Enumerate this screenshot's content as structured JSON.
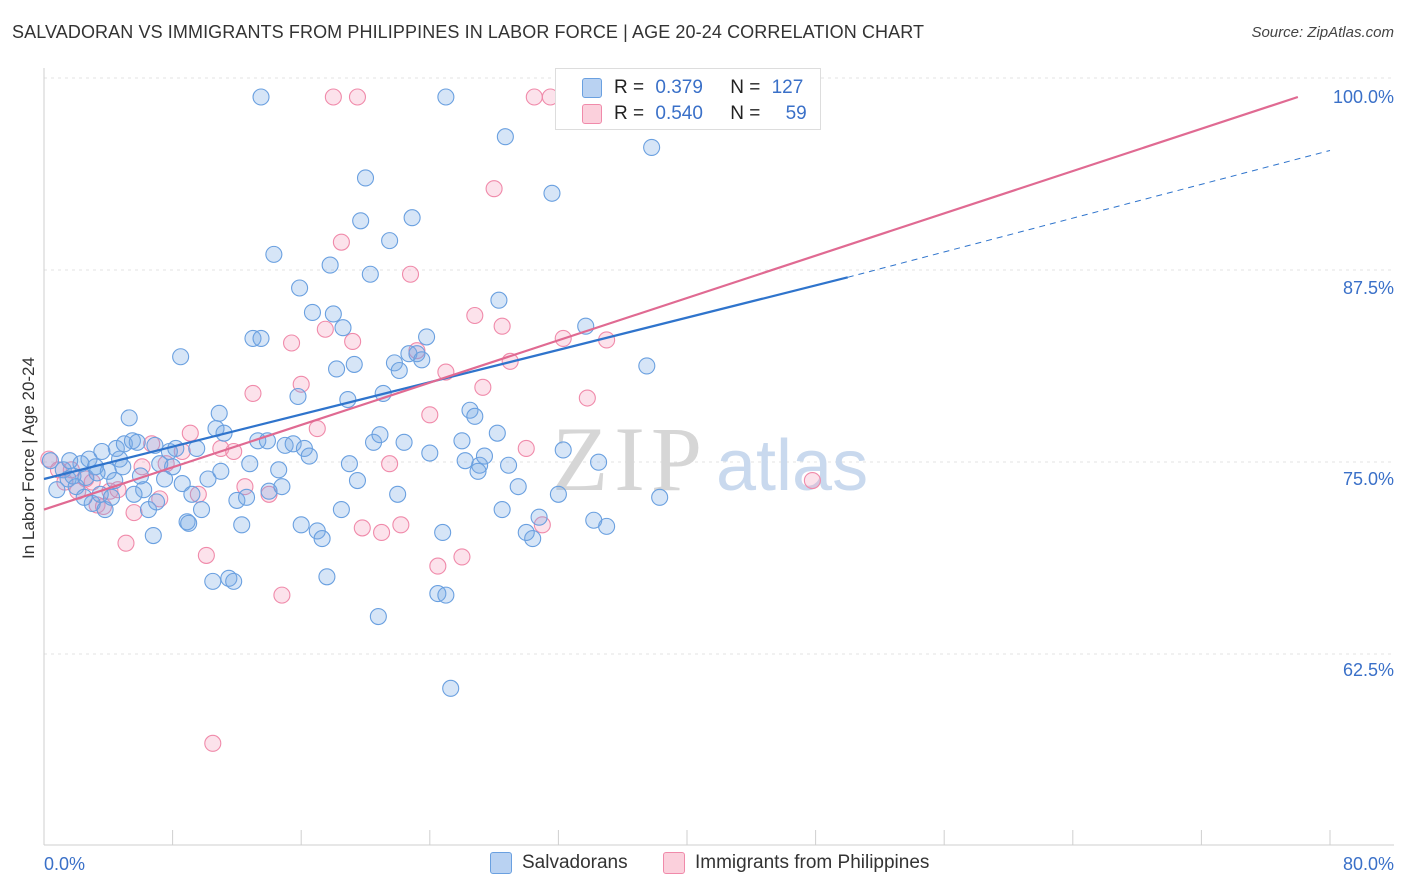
{
  "title": "SALVADORAN VS IMMIGRANTS FROM PHILIPPINES IN LABOR FORCE | AGE 20-24 CORRELATION CHART",
  "source": "Source: ZipAtlas.com",
  "watermark": {
    "zip": "ZIP",
    "atlas": "atlas"
  },
  "colors": {
    "blue": "#6aa0e0",
    "blue_line": "#2f74cc",
    "pink": "#f08aaa",
    "pink_line": "#e06a92",
    "axis_label": "#3a70c8"
  },
  "legend": {
    "r_label": "R =",
    "n_label": "N =",
    "rows": [
      {
        "r": "0.379",
        "n": "127"
      },
      {
        "r": "0.540",
        "n": "59"
      }
    ]
  },
  "series_labels": [
    "Salvadorans",
    "Immigrants from Philippines"
  ],
  "chart_data": {
    "type": "scatter",
    "title": "SALVADORAN VS IMMIGRANTS FROM PHILIPPINES IN LABOR FORCE | AGE 20-24 CORRELATION CHART",
    "xlabel": "",
    "ylabel": "In Labor Force | Age 20-24",
    "xlim": [
      0,
      80
    ],
    "ylim": [
      50,
      101
    ],
    "x_tick_labels": [
      "0.0%",
      "80.0%"
    ],
    "y_ticks": [
      62.5,
      75.0,
      87.5,
      100.0
    ],
    "y_tick_labels": [
      "62.5%",
      "75.0%",
      "87.5%",
      "100.0%"
    ],
    "series": [
      {
        "name": "Salvadorans",
        "r": 0.379,
        "n": 127,
        "trend": {
          "x0": 0,
          "y0": 75.0,
          "x1": 50,
          "y1": 88.2,
          "dash_x1": 80,
          "dash_y1": 96.5
        },
        "points": [
          [
            0.4,
            76.2
          ],
          [
            0.8,
            74.3
          ],
          [
            1.2,
            75.6
          ],
          [
            1.5,
            75.0
          ],
          [
            1.8,
            75.2
          ],
          [
            2.0,
            74.5
          ],
          [
            2.3,
            76.0
          ],
          [
            2.6,
            75.1
          ],
          [
            2.8,
            76.3
          ],
          [
            3.0,
            73.4
          ],
          [
            3.2,
            75.8
          ],
          [
            3.5,
            74.0
          ],
          [
            3.8,
            73.0
          ],
          [
            4.0,
            75.5
          ],
          [
            4.2,
            73.8
          ],
          [
            4.5,
            77.0
          ],
          [
            4.7,
            76.3
          ],
          [
            5.0,
            77.3
          ],
          [
            5.3,
            79.0
          ],
          [
            5.5,
            77.5
          ],
          [
            5.8,
            77.4
          ],
          [
            6.2,
            74.3
          ],
          [
            6.5,
            73.0
          ],
          [
            6.8,
            71.3
          ],
          [
            6.9,
            77.2
          ],
          [
            7.2,
            76.0
          ],
          [
            7.5,
            75.0
          ],
          [
            7.8,
            76.8
          ],
          [
            8.2,
            77.0
          ],
          [
            8.5,
            83.0
          ],
          [
            8.6,
            74.7
          ],
          [
            8.9,
            72.2
          ],
          [
            9.0,
            72.1
          ],
          [
            9.5,
            77.0
          ],
          [
            9.8,
            73.0
          ],
          [
            10.2,
            75.0
          ],
          [
            10.5,
            68.3
          ],
          [
            10.7,
            78.3
          ],
          [
            10.9,
            79.3
          ],
          [
            11.2,
            78.0
          ],
          [
            11.5,
            68.5
          ],
          [
            11.8,
            68.3
          ],
          [
            12.0,
            73.6
          ],
          [
            12.3,
            72.0
          ],
          [
            12.6,
            73.8
          ],
          [
            13.0,
            84.2
          ],
          [
            13.3,
            77.5
          ],
          [
            13.5,
            84.2
          ],
          [
            13.9,
            77.5
          ],
          [
            14.0,
            74.2
          ],
          [
            14.3,
            89.7
          ],
          [
            14.6,
            75.6
          ],
          [
            15.0,
            77.2
          ],
          [
            15.5,
            77.3
          ],
          [
            15.8,
            80.4
          ],
          [
            15.9,
            87.5
          ],
          [
            16.2,
            77.0
          ],
          [
            16.5,
            76.5
          ],
          [
            16.7,
            85.9
          ],
          [
            17.0,
            71.6
          ],
          [
            17.3,
            71.1
          ],
          [
            17.6,
            68.6
          ],
          [
            17.8,
            89.0
          ],
          [
            18.0,
            85.8
          ],
          [
            18.2,
            82.2
          ],
          [
            18.6,
            84.9
          ],
          [
            18.9,
            80.2
          ],
          [
            19.3,
            82.5
          ],
          [
            19.5,
            74.9
          ],
          [
            19.7,
            91.9
          ],
          [
            20.0,
            94.7
          ],
          [
            20.3,
            88.4
          ],
          [
            20.5,
            77.4
          ],
          [
            20.8,
            66.0
          ],
          [
            20.9,
            77.9
          ],
          [
            21.1,
            80.6
          ],
          [
            21.5,
            90.6
          ],
          [
            21.8,
            82.6
          ],
          [
            22.1,
            82.1
          ],
          [
            22.4,
            77.4
          ],
          [
            22.7,
            83.2
          ],
          [
            22.9,
            92.1
          ],
          [
            23.2,
            83.2
          ],
          [
            23.5,
            82.8
          ],
          [
            23.8,
            84.3
          ],
          [
            24.0,
            76.7
          ],
          [
            24.5,
            67.5
          ],
          [
            24.8,
            71.5
          ],
          [
            25.0,
            67.4
          ],
          [
            25.3,
            61.3
          ],
          [
            26.2,
            76.2
          ],
          [
            26.5,
            79.5
          ],
          [
            26.8,
            79.1
          ],
          [
            27.1,
            75.9
          ],
          [
            27.4,
            76.5
          ],
          [
            28.2,
            78.0
          ],
          [
            28.3,
            86.7
          ],
          [
            28.7,
            97.4
          ],
          [
            28.9,
            75.9
          ],
          [
            30.4,
            71.1
          ],
          [
            30.8,
            72.5
          ],
          [
            31.6,
            93.7
          ],
          [
            32.3,
            76.9
          ],
          [
            38.3,
            73.8
          ],
          [
            37.8,
            96.7
          ],
          [
            37.5,
            82.4
          ],
          [
            33.7,
            85.0
          ],
          [
            34.2,
            72.3
          ],
          [
            34.5,
            76.1
          ],
          [
            35.0,
            71.9
          ],
          [
            13.5,
            100.0
          ],
          [
            25.0,
            100.0
          ],
          [
            43.5,
            100.0
          ],
          [
            28.5,
            73.0
          ],
          [
            30.0,
            71.5
          ],
          [
            32.0,
            74.0
          ],
          [
            27.0,
            75.5
          ],
          [
            29.5,
            74.5
          ],
          [
            26.0,
            77.5
          ],
          [
            22.0,
            74.0
          ],
          [
            19.0,
            76.0
          ],
          [
            18.5,
            73.0
          ],
          [
            16.0,
            72.0
          ],
          [
            14.8,
            74.5
          ],
          [
            12.8,
            76.0
          ],
          [
            11.0,
            75.5
          ],
          [
            9.2,
            74.0
          ],
          [
            8.0,
            75.8
          ],
          [
            7.0,
            73.5
          ],
          [
            6.0,
            75.2
          ],
          [
            5.6,
            74.0
          ],
          [
            4.9,
            75.8
          ],
          [
            4.4,
            74.9
          ],
          [
            3.6,
            76.8
          ],
          [
            3.3,
            75.4
          ],
          [
            2.5,
            73.8
          ],
          [
            1.6,
            76.2
          ]
        ]
      },
      {
        "name": "Immigrants from Philippines",
        "r": 0.54,
        "n": 59,
        "trend": {
          "x0": 0,
          "y0": 73.0,
          "x1": 78,
          "y1": 100.0
        },
        "points": [
          [
            0.3,
            76.3
          ],
          [
            0.9,
            75.6
          ],
          [
            1.3,
            74.8
          ],
          [
            1.7,
            75.6
          ],
          [
            2.1,
            74.2
          ],
          [
            2.6,
            75.0
          ],
          [
            3.0,
            74.8
          ],
          [
            3.3,
            73.3
          ],
          [
            3.7,
            73.2
          ],
          [
            4.1,
            74.2
          ],
          [
            4.6,
            74.3
          ],
          [
            5.1,
            70.8
          ],
          [
            5.6,
            72.8
          ],
          [
            6.1,
            75.8
          ],
          [
            6.7,
            77.3
          ],
          [
            7.2,
            73.7
          ],
          [
            7.6,
            76.0
          ],
          [
            8.6,
            76.8
          ],
          [
            9.1,
            78.0
          ],
          [
            9.6,
            74.0
          ],
          [
            10.1,
            70.0
          ],
          [
            11.0,
            77.0
          ],
          [
            11.8,
            76.8
          ],
          [
            12.5,
            74.5
          ],
          [
            13.0,
            80.6
          ],
          [
            14.0,
            74.0
          ],
          [
            14.8,
            67.4
          ],
          [
            15.4,
            83.9
          ],
          [
            16.0,
            81.2
          ],
          [
            17.0,
            78.3
          ],
          [
            17.5,
            84.8
          ],
          [
            18.5,
            90.5
          ],
          [
            19.2,
            84.0
          ],
          [
            19.8,
            71.8
          ],
          [
            21.0,
            71.5
          ],
          [
            21.5,
            76.0
          ],
          [
            22.2,
            72.0
          ],
          [
            22.8,
            88.4
          ],
          [
            23.2,
            83.4
          ],
          [
            24.0,
            79.2
          ],
          [
            24.5,
            69.3
          ],
          [
            25.0,
            82.0
          ],
          [
            26.0,
            69.9
          ],
          [
            26.8,
            85.7
          ],
          [
            27.3,
            81.0
          ],
          [
            28.0,
            94.0
          ],
          [
            28.5,
            85.0
          ],
          [
            29.0,
            82.7
          ],
          [
            30.0,
            77.0
          ],
          [
            31.0,
            72.0
          ],
          [
            32.3,
            84.2
          ],
          [
            33.8,
            80.3
          ],
          [
            35.0,
            84.1
          ],
          [
            47.8,
            74.9
          ],
          [
            18.0,
            100.0
          ],
          [
            19.5,
            100.0
          ],
          [
            30.5,
            100.0
          ],
          [
            31.5,
            100.0
          ],
          [
            10.5,
            57.7
          ]
        ]
      }
    ]
  }
}
